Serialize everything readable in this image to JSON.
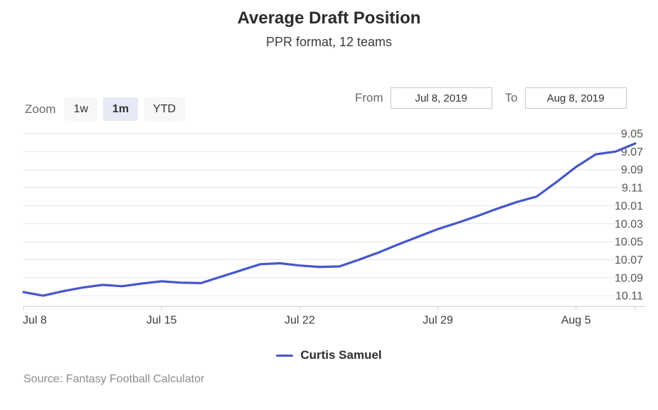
{
  "header": {
    "title": "Average Draft Position",
    "subtitle": "PPR format, 12 teams"
  },
  "controls": {
    "zoom_label": "Zoom",
    "zoom_buttons": [
      {
        "label": "1w",
        "selected": false
      },
      {
        "label": "1m",
        "selected": true
      },
      {
        "label": "YTD",
        "selected": false
      }
    ],
    "from_label": "From",
    "from_value": "Jul 8, 2019",
    "to_label": "To",
    "to_value": "Aug 8, 2019"
  },
  "legend": {
    "series_label": "Curtis Samuel"
  },
  "source": {
    "text": "Source: Fantasy Football Calculator"
  },
  "colors": {
    "series_line": "#4656cb",
    "gridline": "#e6e6e6",
    "axis_line": "#cccccc",
    "y_label": "#555555",
    "x_label": "#3c3c3c",
    "selected_button_bg": "#e6e9f6",
    "button_bg": "#f7f7f7"
  },
  "chart_data": {
    "type": "line",
    "title": "Average Draft Position",
    "subtitle": "PPR format, 12 teams",
    "x": [
      "Jul 8",
      "Jul 9",
      "Jul 10",
      "Jul 11",
      "Jul 12",
      "Jul 13",
      "Jul 14",
      "Jul 15",
      "Jul 16",
      "Jul 17",
      "Jul 18",
      "Jul 19",
      "Jul 20",
      "Jul 21",
      "Jul 22",
      "Jul 23",
      "Jul 24",
      "Jul 25",
      "Jul 26",
      "Jul 27",
      "Jul 28",
      "Jul 29",
      "Jul 30",
      "Jul 31",
      "Aug 1",
      "Aug 2",
      "Aug 3",
      "Aug 4",
      "Aug 5",
      "Aug 6",
      "Aug 7",
      "Aug 8"
    ],
    "series": [
      {
        "name": "Curtis Samuel",
        "color": "#4656cb",
        "values_overall_pick": [
          118.6,
          119.0,
          118.5,
          118.1,
          117.8,
          117.95,
          117.65,
          117.4,
          117.55,
          117.6,
          116.9,
          116.2,
          115.5,
          115.4,
          115.65,
          115.8,
          115.75,
          115.0,
          114.2,
          113.3,
          112.45,
          111.6,
          110.9,
          110.15,
          109.35,
          108.6,
          108.0,
          106.4,
          104.7,
          103.3,
          103.0,
          102.1
        ]
      }
    ],
    "yaxis": {
      "labels": [
        "9.05",
        "9.07",
        "9.09",
        "9.11",
        "10.01",
        "10.03",
        "10.05",
        "10.07",
        "10.09",
        "10.11"
      ],
      "values_overall_pick": [
        101,
        103,
        105,
        107,
        109,
        111,
        113,
        115,
        117,
        119
      ],
      "format": "round.pick (12-team)",
      "reversed": true,
      "position": "right",
      "grid": true
    },
    "xaxis": {
      "tick_labels": [
        "Jul 8",
        "Jul 15",
        "Jul 22",
        "Jul 29",
        "Aug 5"
      ],
      "tick_day_index": [
        0,
        7,
        14,
        21,
        28
      ],
      "range": [
        "Jul 8, 2019",
        "Aug 8, 2019"
      ]
    },
    "legend_position": "bottom-center"
  }
}
